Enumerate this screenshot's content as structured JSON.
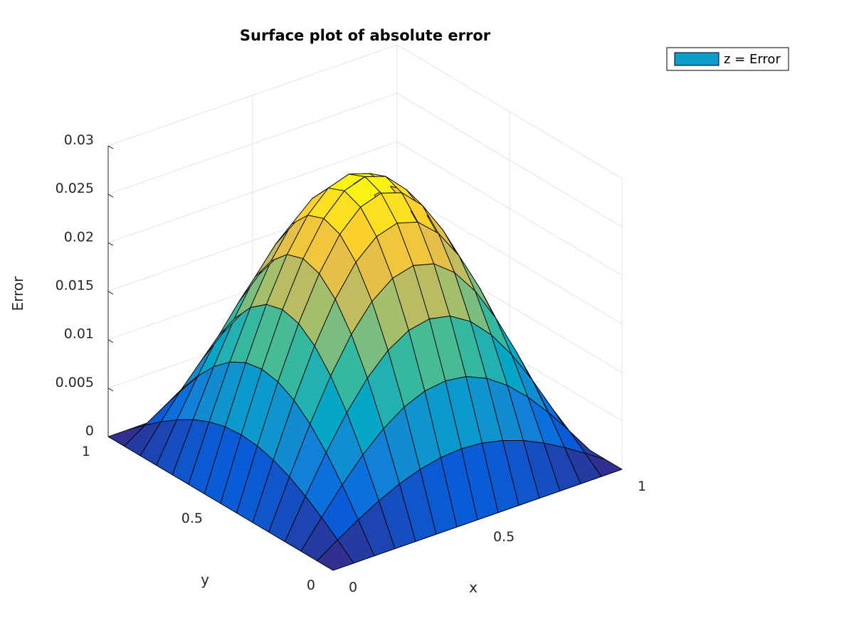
{
  "chart_data": {
    "type": "surface",
    "title": "Surface plot of absolute error",
    "xlabel": "x",
    "ylabel": "y",
    "zlabel": "Error",
    "xlim": [
      0,
      1
    ],
    "ylim": [
      0,
      1
    ],
    "zlim": [
      0,
      0.03
    ],
    "x_ticks": [
      "0",
      "0.5",
      "1"
    ],
    "y_ticks": [
      "0",
      "0.5",
      "1"
    ],
    "z_ticks": [
      "0",
      "0.005",
      "0.01",
      "0.015",
      "0.02",
      "0.025",
      "0.03"
    ],
    "grid": true,
    "colormap": "parula",
    "edge_color": "#000000",
    "mesh_points_per_axis": 15,
    "function": "z = 0.0285 * sin(pi*x) * sin(pi*y)",
    "peak_z": 0.0285,
    "legend": {
      "position": "top-right",
      "entries": [
        {
          "label": "z = Error",
          "color": "#0d9ccc"
        }
      ]
    }
  }
}
